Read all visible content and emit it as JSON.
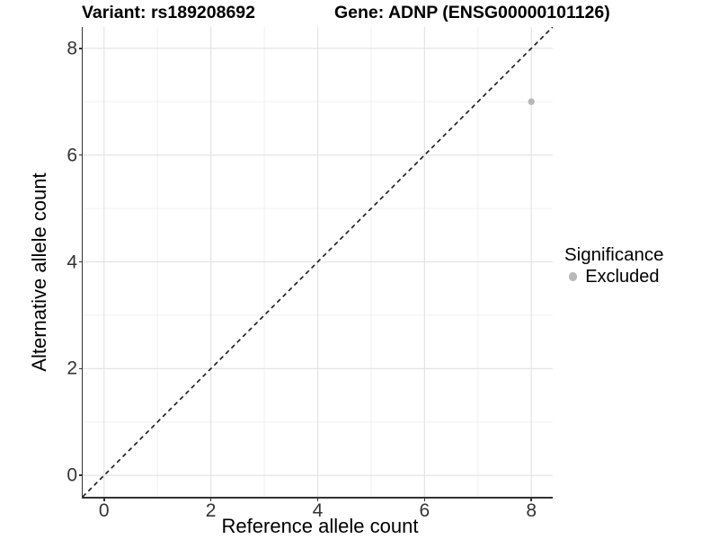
{
  "chart_data": {
    "type": "scatter",
    "titles": {
      "variant": "Variant: rs189208692",
      "gene": "Gene: ADNP (ENSG00000101126)"
    },
    "xlabel": "Reference allele count",
    "ylabel": "Alternative allele count",
    "xlim": [
      -0.4,
      8.4
    ],
    "ylim": [
      -0.4,
      8.4
    ],
    "x_ticks": [
      0,
      2,
      4,
      6,
      8
    ],
    "y_ticks": [
      0,
      2,
      4,
      6,
      8
    ],
    "x_minor_ticks": [
      1,
      3,
      5,
      7
    ],
    "y_minor_ticks": [
      1,
      3,
      5,
      7
    ],
    "grid": "major+minor",
    "series": [
      {
        "name": "Excluded",
        "color": "#b8b8b8",
        "marker": "circle",
        "points": [
          {
            "x": 8,
            "y": 7
          }
        ]
      }
    ],
    "reference_line": {
      "kind": "identity",
      "from": [
        -0.4,
        -0.4
      ],
      "to": [
        8.4,
        8.4
      ],
      "style": "dashed",
      "color": "#1a1a1a"
    },
    "legend": {
      "title": "Significance",
      "position": "right",
      "items": [
        {
          "label": "Excluded",
          "color": "#b8b8b8",
          "marker": "circle"
        }
      ]
    },
    "colors": {
      "background": "#ffffff",
      "grid_major": "#e4e4e4",
      "grid_minor": "#f0f0f0",
      "axis_line": "#333333",
      "tick_label": "#333333",
      "title": "#000000"
    }
  }
}
